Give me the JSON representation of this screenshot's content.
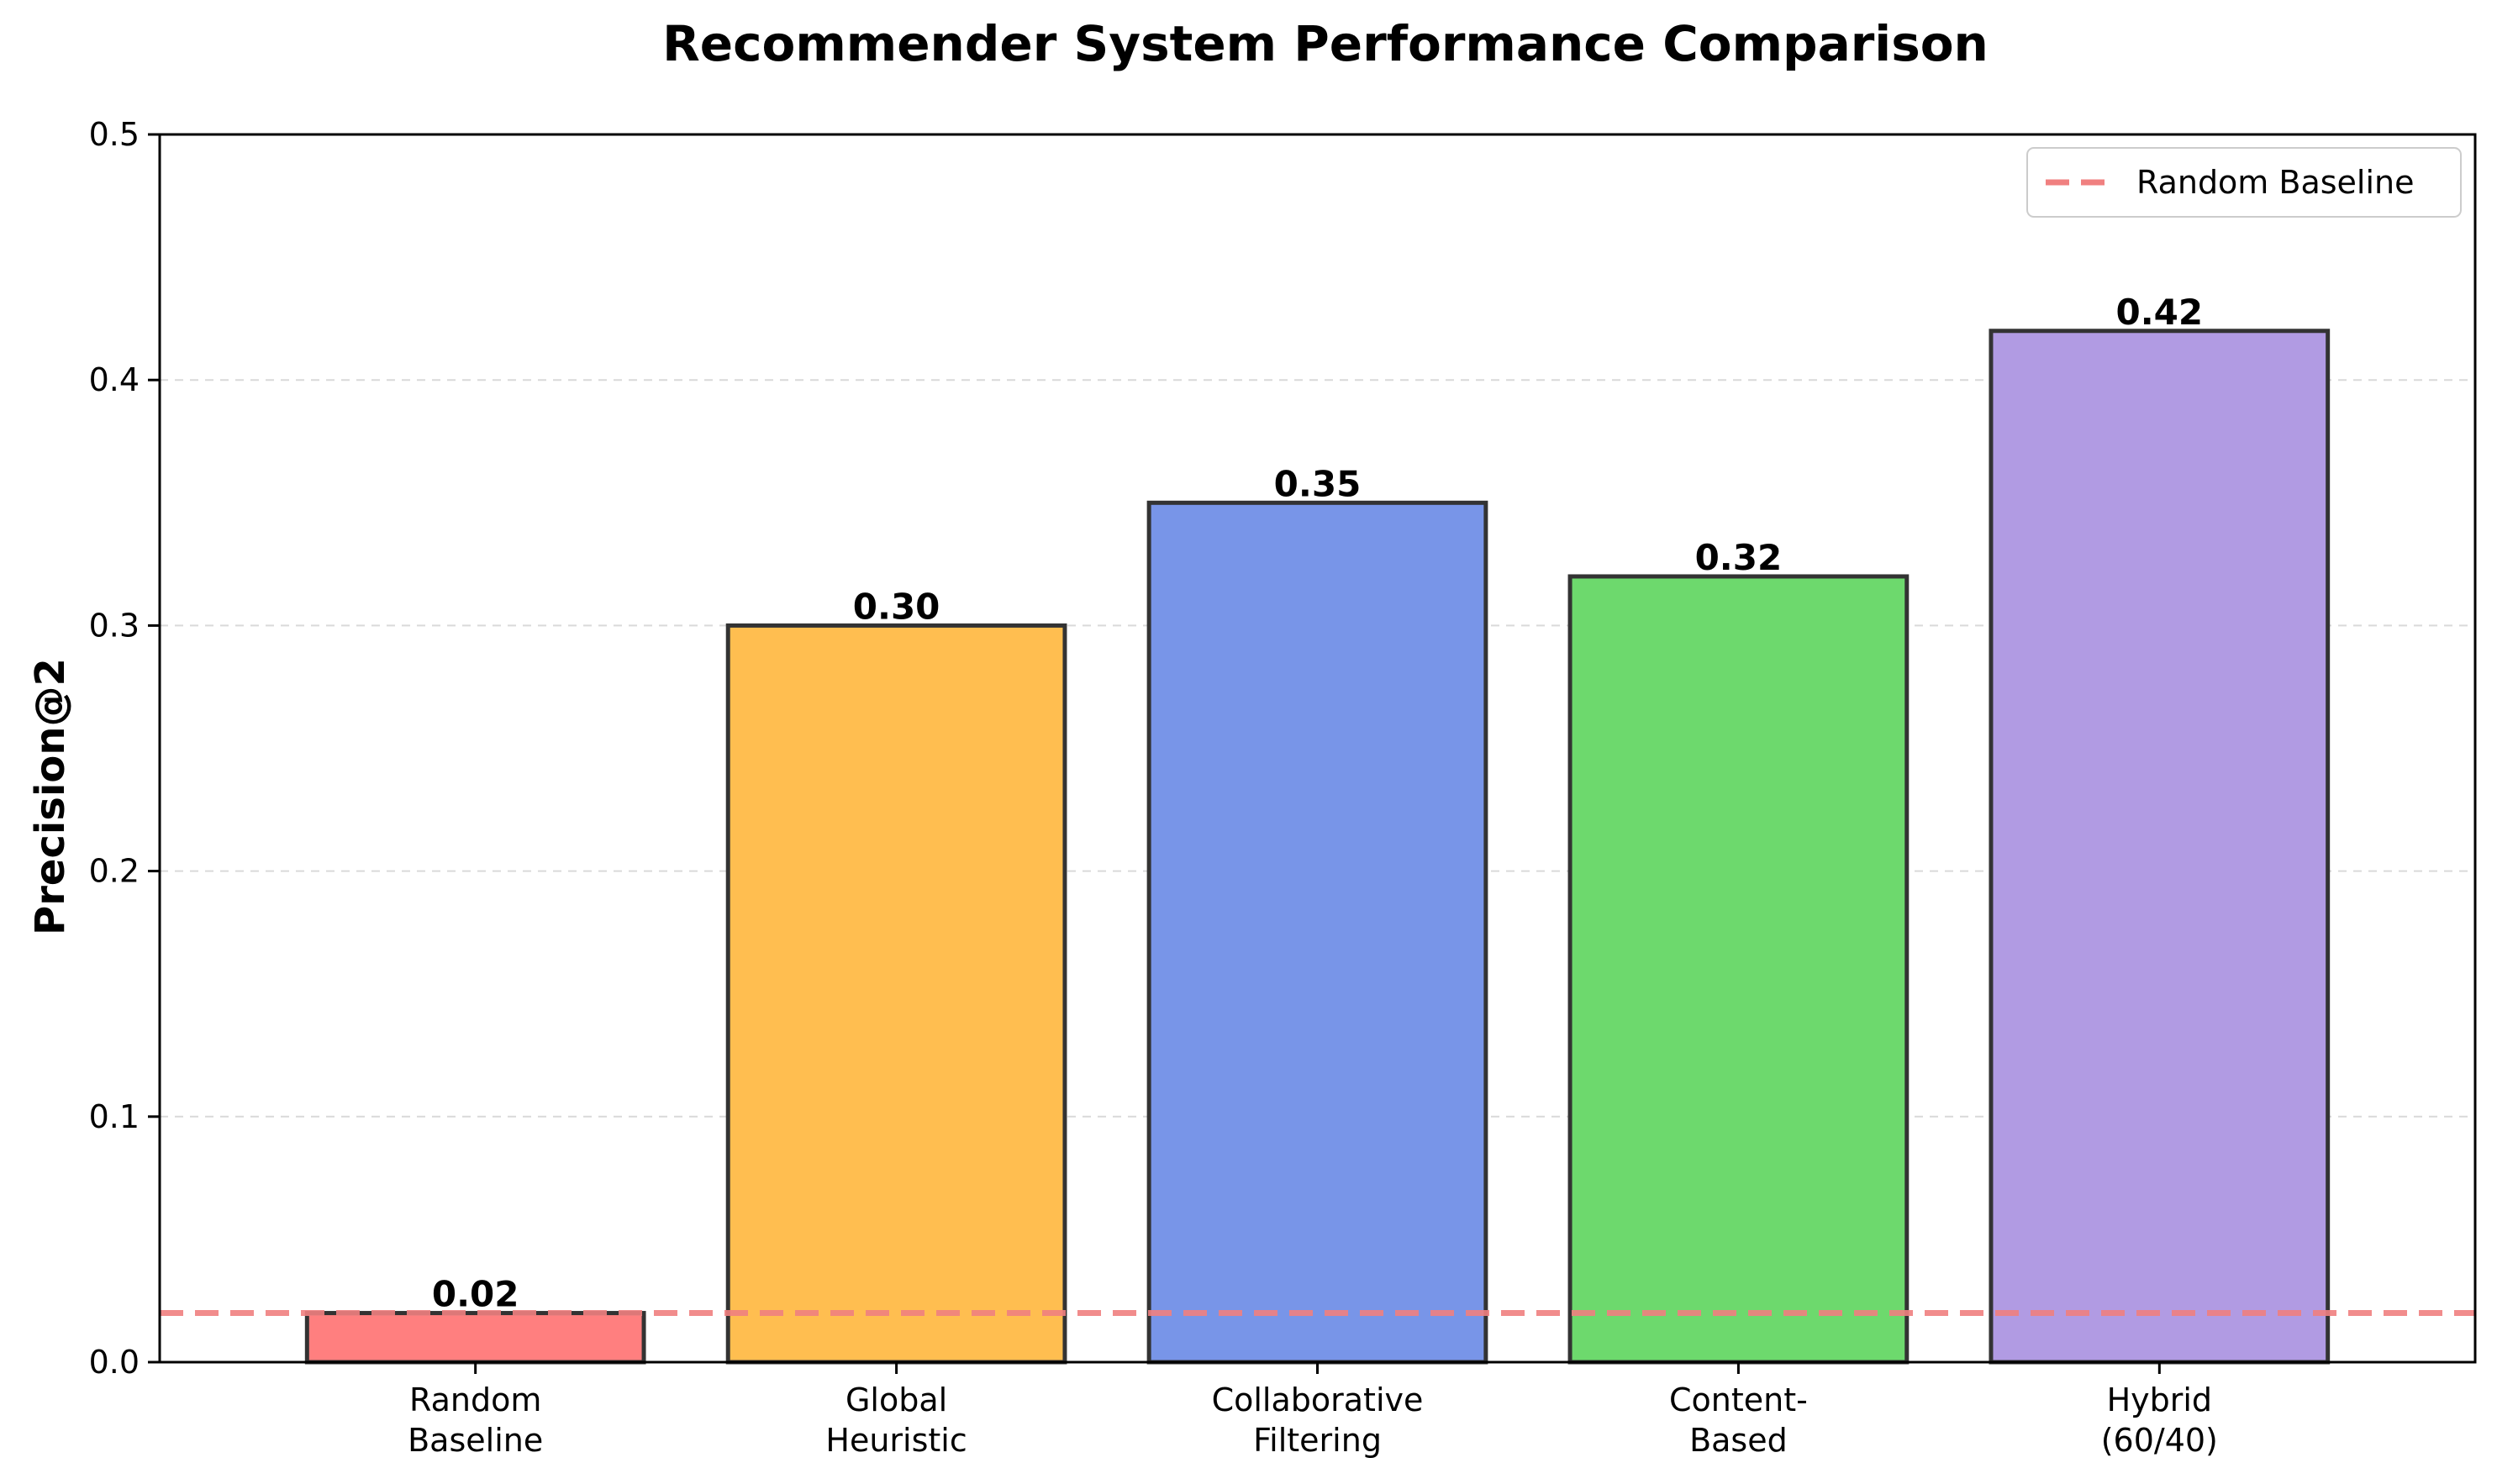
{
  "chart_data": {
    "type": "bar",
    "title": "Recommender System Performance Comparison",
    "xlabel": "",
    "ylabel": "Precision@2",
    "categories": [
      [
        "Random",
        "Baseline"
      ],
      [
        "Global",
        "Heuristic"
      ],
      [
        "Collaborative",
        "Filtering"
      ],
      [
        "Content-",
        "Based"
      ],
      [
        "Hybrid",
        "(60/40)"
      ]
    ],
    "values": [
      0.02,
      0.3,
      0.35,
      0.32,
      0.42
    ],
    "value_labels": [
      "0.02",
      "0.30",
      "0.35",
      "0.32",
      "0.42"
    ],
    "bar_colors": [
      "#ff7f7f",
      "#ffbe50",
      "#7895e8",
      "#6dd96d",
      "#b19be3"
    ],
    "ylim": [
      0,
      0.5
    ],
    "yticks": [
      0.0,
      0.1,
      0.2,
      0.3,
      0.4,
      0.5
    ],
    "ytick_labels": [
      "0.0",
      "0.1",
      "0.2",
      "0.3",
      "0.4",
      "0.5"
    ],
    "grid": "y-dashed",
    "reference_line": {
      "name": "Random Baseline",
      "value": 0.02,
      "color": "#f08080",
      "style": "dashed"
    },
    "legend": {
      "position": "top-right",
      "entries": [
        "Random Baseline"
      ]
    }
  }
}
